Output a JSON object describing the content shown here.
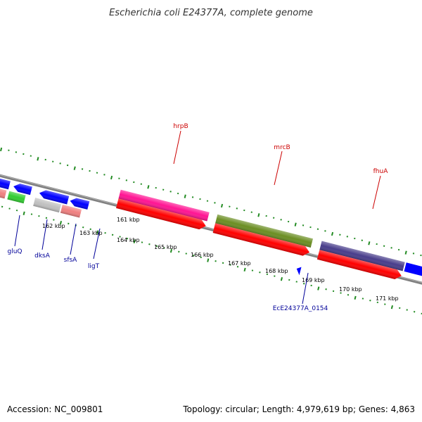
{
  "title": "Escherichia coli E24377A, complete genome",
  "footer": {
    "accession": "Accession: NC_009801",
    "topology": "Topology: circular; Length: 4,979,619 bp; Genes: 4,863"
  },
  "kbp_ticks": [
    "161 kbp",
    "162 kbp",
    "163 kbp",
    "164 kbp",
    "165 kbp",
    "166 kbp",
    "167 kbp",
    "168 kbp",
    "169 kbp",
    "170 kbp",
    "171 kbp"
  ],
  "gene_labels": {
    "hrpB": "hrpB",
    "mrcB": "mrcB",
    "fhuA": "fhuA",
    "gluQ": "gluQ",
    "dksA": "dksA",
    "sfsA": "sfsA",
    "ligT": "ligT",
    "ec0154": "EcE24377A_0154"
  },
  "colors": {
    "forward_label": "#cc0000",
    "reverse_label": "#000099",
    "backbone": "#808080",
    "tick_green": "#228b22",
    "cds_red": "#ff0000",
    "hrpB": "#ff1493",
    "mrcB": "#6b8e23",
    "fhuA": "#483d8b",
    "blue": "#0000ff",
    "salmon": "#f08080",
    "green": "#32cd32",
    "gray": "#c0c0c0"
  }
}
